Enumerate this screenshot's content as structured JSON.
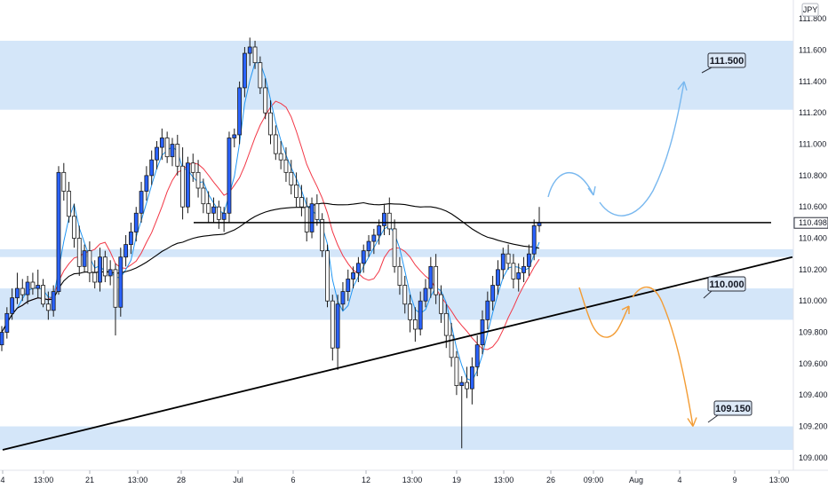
{
  "chart_data": {
    "type": "candlestick",
    "currency": "JPY",
    "ylim": [
      108.92,
      111.92
    ],
    "y_ticks": [
      {
        "value": 111.8,
        "label": "111.800"
      },
      {
        "value": 111.6,
        "label": "111.600"
      },
      {
        "value": 111.4,
        "label": "111.400"
      },
      {
        "value": 111.2,
        "label": "111.200"
      },
      {
        "value": 111.0,
        "label": "111.000"
      },
      {
        "value": 110.8,
        "label": "110.800"
      },
      {
        "value": 110.6,
        "label": "110.600"
      },
      {
        "value": 110.4,
        "label": "110.400"
      },
      {
        "value": 110.2,
        "label": "110.200"
      },
      {
        "value": 110.0,
        "label": "110.000"
      },
      {
        "value": 109.8,
        "label": "109.800"
      },
      {
        "value": 109.6,
        "label": "109.600"
      },
      {
        "value": 109.4,
        "label": "109.400"
      },
      {
        "value": 109.2,
        "label": "109.200"
      },
      {
        "value": 109.0,
        "label": "109.000"
      }
    ],
    "x_ticks": [
      {
        "x": 0,
        "label": "4"
      },
      {
        "x": 1,
        "label": "13:00"
      },
      {
        "x": 2,
        "label": "21"
      },
      {
        "x": 3,
        "label": "13:00"
      },
      {
        "x": 4,
        "label": "28"
      },
      {
        "x": 5,
        "label": "Jul"
      },
      {
        "x": 6,
        "label": "6"
      },
      {
        "x": 7,
        "label": "12"
      },
      {
        "x": 8,
        "label": "13:00"
      },
      {
        "x": 9,
        "label": "19"
      },
      {
        "x": 10,
        "label": "13:00"
      },
      {
        "x": 11,
        "label": "26"
      },
      {
        "x": 12,
        "label": "09:00"
      },
      {
        "x": 13,
        "label": "Aug"
      },
      {
        "x": 14,
        "label": "4"
      },
      {
        "x": 15,
        "label": "9"
      },
      {
        "x": 16,
        "label": "13:00"
      }
    ],
    "current_price": {
      "value": 110.498,
      "label": "110.498"
    },
    "zones": [
      {
        "from": 111.22,
        "to": 111.66
      },
      {
        "from": 110.28,
        "to": 110.33
      },
      {
        "from": 109.88,
        "to": 110.08
      },
      {
        "from": 109.05,
        "to": 109.2
      }
    ],
    "horizontal_line": {
      "value": 110.5
    },
    "trendline": {
      "from": {
        "x": 0,
        "y": 109.05
      },
      "to": {
        "x": 16.3,
        "y": 110.28
      }
    },
    "annotations": [
      {
        "label": "111.500",
        "value": 111.5
      },
      {
        "label": "110.000",
        "value": 110.0
      },
      {
        "label": "109.150",
        "value": 109.15
      }
    ],
    "scenarios": [
      {
        "direction": "bullish",
        "color": "#79b8ef",
        "target": 111.4
      },
      {
        "direction": "bearish",
        "color": "#f39c34",
        "target": 109.2
      }
    ],
    "series": [
      {
        "name": "",
        "color": "#f23645"
      },
      {
        "name": "",
        "color": "#2196f3"
      },
      {
        "name": "",
        "color": "#000000"
      }
    ],
    "candles": [
      [
        109.72,
        109.84,
        109.68,
        109.8
      ],
      [
        109.8,
        109.96,
        109.76,
        109.92
      ],
      [
        109.92,
        110.08,
        109.88,
        110.02
      ],
      [
        110.02,
        110.18,
        109.98,
        110.08
      ],
      [
        110.08,
        110.14,
        110.0,
        110.04
      ],
      [
        110.04,
        110.16,
        109.98,
        110.12
      ],
      [
        110.12,
        110.18,
        110.04,
        110.08
      ],
      [
        110.08,
        110.2,
        110.02,
        110.1
      ],
      [
        110.1,
        110.14,
        109.96,
        109.98
      ],
      [
        109.98,
        110.06,
        109.88,
        109.94
      ],
      [
        109.94,
        110.1,
        109.9,
        110.06
      ],
      [
        110.06,
        110.86,
        110.04,
        110.82
      ],
      [
        110.82,
        110.88,
        110.64,
        110.7
      ],
      [
        110.7,
        110.76,
        110.5,
        110.54
      ],
      [
        110.54,
        110.62,
        110.34,
        110.4
      ],
      [
        110.4,
        110.48,
        110.16,
        110.22
      ],
      [
        110.22,
        110.36,
        110.18,
        110.32
      ],
      [
        110.32,
        110.38,
        110.12,
        110.18
      ],
      [
        110.18,
        110.26,
        110.08,
        110.12
      ],
      [
        110.12,
        110.34,
        110.06,
        110.28
      ],
      [
        110.28,
        110.32,
        110.12,
        110.16
      ],
      [
        110.16,
        110.26,
        110.1,
        110.2
      ],
      [
        110.2,
        110.24,
        109.78,
        109.96
      ],
      [
        109.96,
        110.34,
        109.9,
        110.28
      ],
      [
        110.28,
        110.42,
        110.22,
        110.36
      ],
      [
        110.36,
        110.5,
        110.3,
        110.44
      ],
      [
        110.44,
        110.6,
        110.38,
        110.56
      ],
      [
        110.56,
        110.76,
        110.5,
        110.7
      ],
      [
        110.7,
        110.86,
        110.64,
        110.8
      ],
      [
        110.8,
        110.96,
        110.74,
        110.9
      ],
      [
        110.9,
        111.02,
        110.84,
        110.98
      ],
      [
        110.98,
        111.1,
        110.9,
        111.04
      ],
      [
        111.04,
        111.08,
        110.88,
        110.92
      ],
      [
        110.92,
        111.04,
        110.86,
        111.0
      ],
      [
        111.0,
        111.06,
        110.8,
        110.86
      ],
      [
        110.86,
        110.98,
        110.52,
        110.6
      ],
      [
        110.6,
        110.92,
        110.56,
        110.88
      ],
      [
        110.88,
        110.94,
        110.76,
        110.82
      ],
      [
        110.82,
        110.9,
        110.66,
        110.72
      ],
      [
        110.72,
        110.78,
        110.56,
        110.62
      ],
      [
        110.62,
        110.7,
        110.5,
        110.56
      ],
      [
        110.56,
        110.66,
        110.5,
        110.6
      ],
      [
        110.6,
        110.64,
        110.46,
        110.52
      ],
      [
        110.52,
        110.6,
        110.44,
        110.56
      ],
      [
        110.56,
        111.08,
        110.5,
        111.04
      ],
      [
        111.04,
        111.1,
        110.98,
        111.06
      ],
      [
        111.06,
        111.4,
        111.0,
        111.36
      ],
      [
        111.36,
        111.62,
        111.3,
        111.58
      ],
      [
        111.58,
        111.68,
        111.5,
        111.62
      ],
      [
        111.62,
        111.66,
        111.48,
        111.52
      ],
      [
        111.52,
        111.56,
        111.32,
        111.36
      ],
      [
        111.36,
        111.42,
        111.16,
        111.2
      ],
      [
        111.2,
        111.28,
        111.0,
        111.06
      ],
      [
        111.06,
        111.12,
        110.9,
        110.94
      ],
      [
        110.94,
        111.02,
        110.84,
        110.9
      ],
      [
        110.9,
        110.98,
        110.76,
        110.82
      ],
      [
        110.82,
        110.9,
        110.68,
        110.74
      ],
      [
        110.74,
        110.82,
        110.6,
        110.66
      ],
      [
        110.66,
        110.74,
        110.54,
        110.6
      ],
      [
        110.6,
        110.66,
        110.38,
        110.44
      ],
      [
        110.44,
        110.66,
        110.4,
        110.62
      ],
      [
        110.62,
        110.68,
        110.48,
        110.52
      ],
      [
        110.52,
        110.56,
        110.28,
        110.32
      ],
      [
        110.32,
        110.36,
        109.96,
        110.0
      ],
      [
        110.0,
        110.04,
        109.62,
        109.7
      ],
      [
        109.7,
        110.04,
        109.56,
        109.98
      ],
      [
        109.98,
        110.12,
        109.94,
        110.06
      ],
      [
        110.06,
        110.2,
        110.0,
        110.14
      ],
      [
        110.14,
        110.22,
        110.08,
        110.18
      ],
      [
        110.18,
        110.28,
        110.12,
        110.24
      ],
      [
        110.24,
        110.36,
        110.18,
        110.32
      ],
      [
        110.32,
        110.42,
        110.28,
        110.38
      ],
      [
        110.38,
        110.46,
        110.3,
        110.42
      ],
      [
        110.42,
        110.52,
        110.36,
        110.48
      ],
      [
        110.48,
        110.62,
        110.42,
        110.56
      ],
      [
        110.56,
        110.66,
        110.42,
        110.46
      ],
      [
        110.46,
        110.52,
        110.18,
        110.22
      ],
      [
        110.22,
        110.28,
        110.04,
        110.1
      ],
      [
        110.1,
        110.16,
        109.92,
        109.98
      ],
      [
        109.98,
        110.04,
        109.8,
        109.88
      ],
      [
        109.88,
        109.96,
        109.74,
        109.82
      ],
      [
        109.82,
        110.06,
        109.78,
        110.0
      ],
      [
        110.0,
        110.14,
        109.96,
        110.08
      ],
      [
        110.08,
        110.28,
        110.02,
        110.22
      ],
      [
        110.22,
        110.3,
        109.98,
        110.04
      ],
      [
        110.04,
        110.1,
        109.86,
        109.92
      ],
      [
        109.92,
        109.98,
        109.7,
        109.78
      ],
      [
        109.78,
        109.86,
        109.58,
        109.64
      ],
      [
        109.64,
        109.68,
        109.4,
        109.46
      ],
      [
        109.46,
        109.52,
        109.06,
        109.48
      ],
      [
        109.48,
        109.58,
        109.38,
        109.44
      ],
      [
        109.44,
        109.64,
        109.34,
        109.58
      ],
      [
        109.58,
        109.78,
        109.52,
        109.72
      ],
      [
        109.72,
        109.94,
        109.66,
        109.88
      ],
      [
        109.88,
        110.06,
        109.82,
        110.0
      ],
      [
        110.0,
        110.16,
        109.94,
        110.1
      ],
      [
        110.1,
        110.26,
        110.04,
        110.2
      ],
      [
        110.2,
        110.34,
        110.14,
        110.3
      ],
      [
        110.3,
        110.36,
        110.2,
        110.24
      ],
      [
        110.24,
        110.3,
        110.08,
        110.14
      ],
      [
        110.14,
        110.24,
        110.06,
        110.18
      ],
      [
        110.18,
        110.28,
        110.12,
        110.22
      ],
      [
        110.22,
        110.36,
        110.16,
        110.3
      ],
      [
        110.3,
        110.52,
        110.26,
        110.48
      ],
      [
        110.48,
        110.6,
        110.44,
        110.5
      ]
    ]
  }
}
